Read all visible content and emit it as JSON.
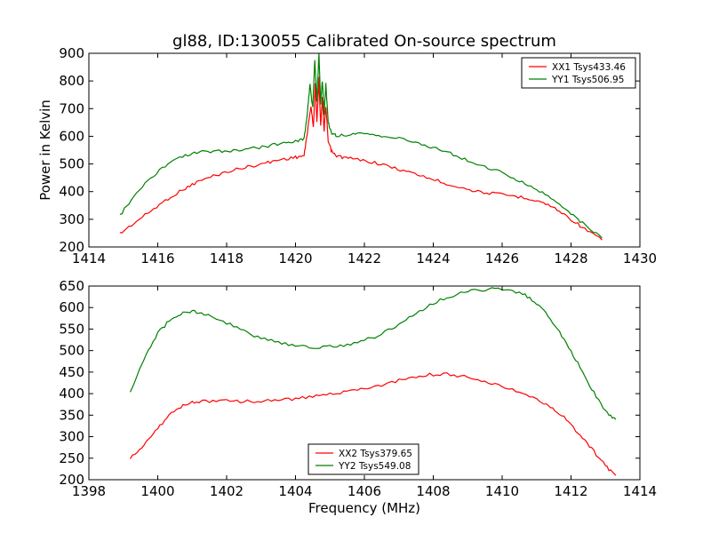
{
  "figure": {
    "title": "gl88, ID:130055 Calibrated On-source spectrum"
  },
  "chart_data": [
    {
      "type": "line",
      "title": "gl88, ID:130055 Calibrated On-source spectrum",
      "xlabel": "",
      "ylabel": "Power in Kelvin",
      "xlim": [
        1414,
        1430
      ],
      "ylim": [
        200,
        900
      ],
      "xticks": [
        1414,
        1416,
        1418,
        1420,
        1422,
        1424,
        1426,
        1428,
        1430
      ],
      "yticks": [
        200,
        300,
        400,
        500,
        600,
        700,
        800,
        900
      ],
      "grid": false,
      "legend_position": "top-right",
      "series": [
        {
          "name": "XX1 Tsys433.46",
          "color": "#ff0000",
          "x": [
            1414.9,
            1415.3,
            1415.8,
            1416.3,
            1416.8,
            1417.2,
            1417.7,
            1418.2,
            1418.7,
            1419.2,
            1419.6,
            1420.0,
            1420.25,
            1420.35,
            1420.45,
            1420.52,
            1420.57,
            1420.62,
            1420.68,
            1420.73,
            1420.78,
            1420.83,
            1420.88,
            1420.95,
            1421.05,
            1421.15,
            1421.4,
            1421.8,
            1422.3,
            1422.8,
            1423.3,
            1423.8,
            1424.3,
            1424.8,
            1425.3,
            1425.8,
            1426.3,
            1426.8,
            1427.2,
            1427.6,
            1428.0,
            1428.4,
            1428.9
          ],
          "values": [
            248,
            285,
            330,
            375,
            412,
            438,
            460,
            478,
            492,
            505,
            517,
            524,
            530,
            620,
            710,
            630,
            790,
            650,
            810,
            640,
            740,
            620,
            710,
            580,
            545,
            532,
            523,
            516,
            505,
            488,
            470,
            452,
            432,
            415,
            400,
            392,
            385,
            375,
            360,
            335,
            300,
            265,
            225
          ]
        },
        {
          "name": "YY1 Tsys506.95",
          "color": "#008000",
          "x": [
            1414.9,
            1415.3,
            1415.8,
            1416.3,
            1416.8,
            1417.2,
            1417.7,
            1418.2,
            1418.7,
            1419.2,
            1419.6,
            1420.0,
            1420.25,
            1420.35,
            1420.42,
            1420.5,
            1420.56,
            1420.62,
            1420.68,
            1420.73,
            1420.78,
            1420.83,
            1420.88,
            1420.95,
            1421.05,
            1421.2,
            1421.6,
            1422.0,
            1422.5,
            1423.0,
            1423.5,
            1424.0,
            1424.5,
            1425.0,
            1425.5,
            1426.0,
            1426.5,
            1427.0,
            1427.5,
            1428.0,
            1428.4,
            1428.9
          ],
          "values": [
            315,
            380,
            450,
            500,
            530,
            542,
            546,
            548,
            555,
            565,
            575,
            583,
            592,
            690,
            790,
            700,
            875,
            730,
            900,
            720,
            800,
            680,
            790,
            650,
            610,
            603,
            607,
            607,
            602,
            592,
            578,
            560,
            538,
            512,
            490,
            468,
            440,
            408,
            370,
            320,
            280,
            232
          ]
        }
      ]
    },
    {
      "type": "line",
      "title": "",
      "xlabel": "Frequency (MHz)",
      "ylabel": "",
      "xlim": [
        1398,
        1414
      ],
      "ylim": [
        200,
        650
      ],
      "xticks": [
        1398,
        1400,
        1402,
        1404,
        1406,
        1408,
        1410,
        1412,
        1414
      ],
      "yticks": [
        200,
        250,
        300,
        350,
        400,
        450,
        500,
        550,
        600,
        650
      ],
      "grid": false,
      "legend_position": "bottom-center",
      "series": [
        {
          "name": "XX2 Tsys379.65",
          "color": "#ff0000",
          "x": [
            1399.2,
            1399.6,
            1400.0,
            1400.4,
            1400.8,
            1401.2,
            1401.8,
            1402.4,
            1403.0,
            1403.6,
            1404.2,
            1404.8,
            1405.4,
            1406.0,
            1406.6,
            1407.2,
            1407.8,
            1408.4,
            1409.0,
            1409.6,
            1410.2,
            1410.8,
            1411.4,
            1411.8,
            1412.2,
            1412.6,
            1413.0,
            1413.3
          ],
          "values": [
            250,
            280,
            320,
            355,
            375,
            382,
            383,
            382,
            382,
            385,
            390,
            397,
            404,
            412,
            422,
            435,
            444,
            446,
            438,
            426,
            412,
            395,
            370,
            345,
            310,
            272,
            232,
            210
          ]
        },
        {
          "name": "YY2 Tsys549.08",
          "color": "#008000",
          "x": [
            1399.2,
            1399.6,
            1400.0,
            1400.4,
            1400.8,
            1401.2,
            1401.6,
            1402.2,
            1402.8,
            1403.4,
            1404.0,
            1404.6,
            1405.2,
            1405.8,
            1406.4,
            1407.0,
            1407.6,
            1408.2,
            1408.8,
            1409.4,
            1410.0,
            1410.6,
            1411.0,
            1411.4,
            1411.8,
            1412.2,
            1412.6,
            1413.0,
            1413.3
          ],
          "values": [
            405,
            480,
            540,
            575,
            590,
            590,
            580,
            557,
            535,
            520,
            512,
            508,
            510,
            518,
            535,
            560,
            592,
            618,
            634,
            642,
            643,
            632,
            610,
            575,
            525,
            470,
            410,
            360,
            340
          ]
        }
      ]
    }
  ]
}
